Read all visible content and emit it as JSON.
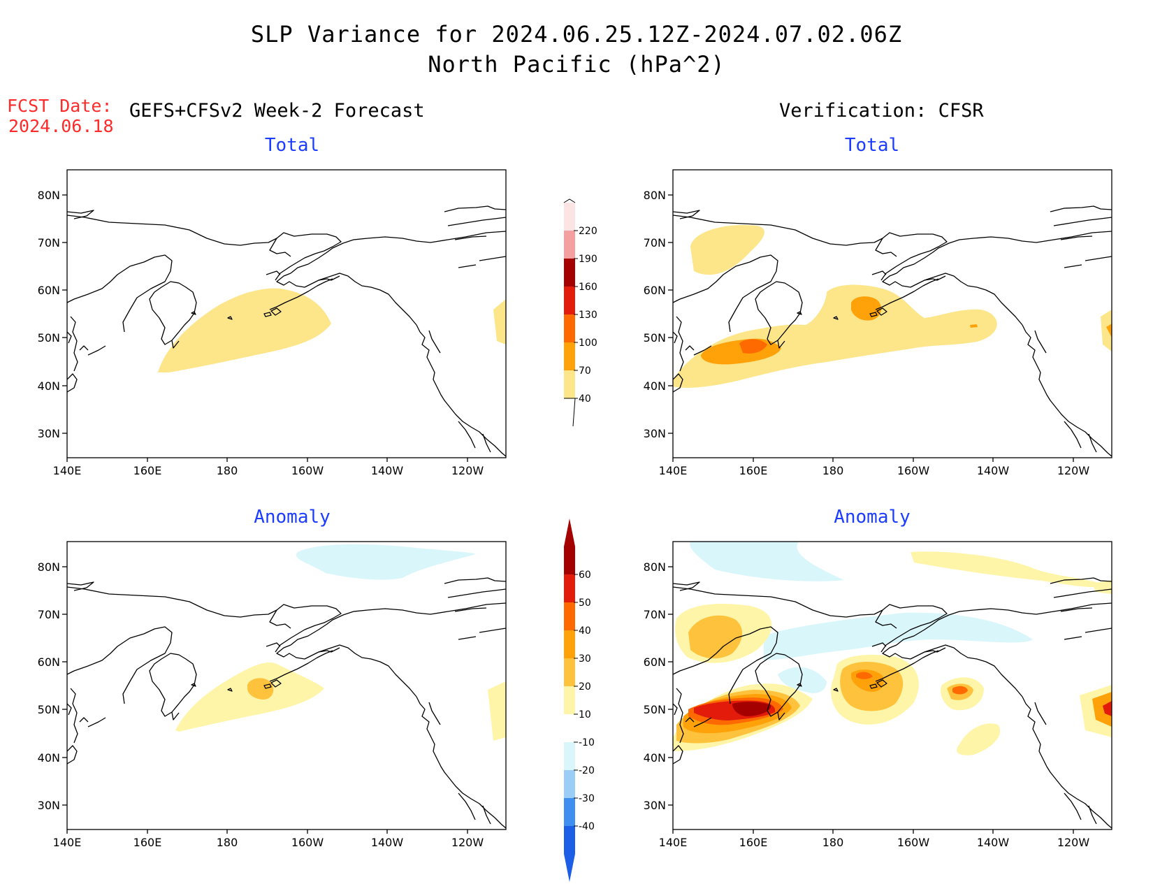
{
  "title": {
    "line1": "SLP Variance for 2024.06.25.12Z-2024.07.02.06Z",
    "line2": "North Pacific (hPa^2)"
  },
  "fcst": {
    "label": "FCST Date:",
    "date": "2024.06.18"
  },
  "left_header": "GEFS+CFSv2 Week-2 Forecast",
  "right_header": "Verification: CFSR",
  "panels": {
    "fc_total": {
      "title": "Total"
    },
    "ver_total": {
      "title": "Total"
    },
    "fc_anom": {
      "title": "Anomaly"
    },
    "ver_anom": {
      "title": "Anomaly"
    }
  },
  "axes": {
    "lat_ticks": [
      "80N",
      "70N",
      "60N",
      "50N",
      "40N",
      "30N"
    ],
    "lon_ticks": [
      "140E",
      "160E",
      "180",
      "160W",
      "140W",
      "120W"
    ]
  },
  "colorbar_total": {
    "labels": [
      "40",
      "70",
      "100",
      "130",
      "160",
      "190",
      "220"
    ],
    "colors": [
      "#fde68a",
      "#ffa20a",
      "#ff6a00",
      "#e31b0b",
      "#a50000",
      "#f5a0a0",
      "#fde4e4"
    ]
  },
  "colorbar_anom": {
    "labels": [
      "-40",
      "-30",
      "-20",
      "-10",
      "10",
      "20",
      "30",
      "40",
      "50",
      "60"
    ],
    "colors": [
      "#1c5fe6",
      "#3f8ff0",
      "#9ccdf7",
      "#d9f6fb",
      "#ffffff",
      "#fff5a8",
      "#ffc23c",
      "#ffa20a",
      "#ff6a00",
      "#e31b0b",
      "#a50000"
    ]
  }
}
